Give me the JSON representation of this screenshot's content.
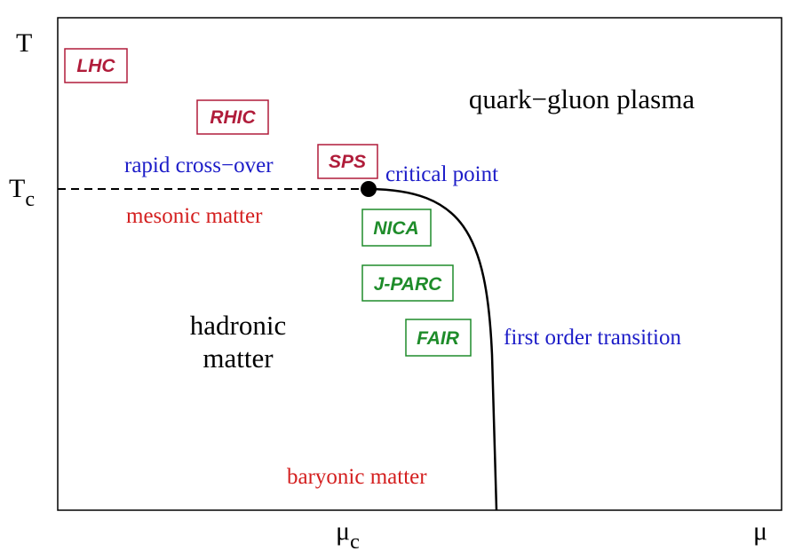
{
  "axes": {
    "y_label": "T",
    "y_mark": {
      "base": "T",
      "sub": "c"
    },
    "x_mark": {
      "base": "μ",
      "sub": "c"
    },
    "x_label": "μ"
  },
  "regions": {
    "plasma": "quark−gluon plasma",
    "crossover": "rapid cross−over",
    "critical": "critical point",
    "mesonic": "mesonic matter",
    "hadronic": [
      "hadronic",
      "matter"
    ],
    "first_order": "first order transition",
    "baryonic": "baryonic matter"
  },
  "experiments": {
    "high_energy": [
      "LHC",
      "RHIC",
      "SPS"
    ],
    "low_energy": [
      "NICA",
      "J-PARC",
      "FAIR"
    ]
  }
}
